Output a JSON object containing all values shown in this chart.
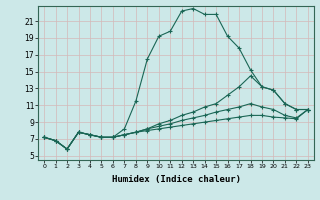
{
  "xlabel": "Humidex (Indice chaleur)",
  "background_color": "#cce8e8",
  "grid_color": "#b8d8d0",
  "line_color": "#1a6655",
  "xlim": [
    -0.5,
    23.5
  ],
  "ylim": [
    4.5,
    22.8
  ],
  "yticks": [
    5,
    7,
    9,
    11,
    13,
    15,
    17,
    19,
    21
  ],
  "xticks": [
    0,
    1,
    2,
    3,
    4,
    5,
    6,
    7,
    8,
    9,
    10,
    11,
    12,
    13,
    14,
    15,
    16,
    17,
    18,
    19,
    20,
    21,
    22,
    23
  ],
  "series": [
    {
      "x": [
        0,
        1,
        2,
        3,
        4,
        5,
        6,
        7,
        8,
        9,
        10,
        11,
        12,
        13,
        14,
        15,
        16,
        17,
        18,
        19,
        20,
        21,
        22,
        23
      ],
      "y": [
        7.2,
        6.8,
        5.8,
        7.8,
        7.5,
        7.2,
        7.2,
        8.2,
        11.5,
        16.5,
        19.2,
        19.8,
        22.2,
        22.5,
        21.8,
        21.8,
        19.2,
        17.8,
        15.2,
        13.2,
        12.8,
        11.2,
        10.5,
        10.5
      ]
    },
    {
      "x": [
        0,
        1,
        2,
        3,
        4,
        5,
        6,
        7,
        8,
        9,
        10,
        11,
        12,
        13,
        14,
        15,
        16,
        17,
        18,
        19,
        20,
        21,
        22,
        23
      ],
      "y": [
        7.2,
        6.8,
        5.8,
        7.8,
        7.5,
        7.2,
        7.2,
        7.5,
        7.8,
        8.2,
        8.8,
        9.2,
        9.8,
        10.2,
        10.8,
        11.2,
        12.2,
        13.2,
        14.5,
        13.2,
        12.8,
        11.2,
        10.5,
        10.5
      ]
    },
    {
      "x": [
        0,
        1,
        2,
        3,
        4,
        5,
        6,
        7,
        8,
        9,
        10,
        11,
        12,
        13,
        14,
        15,
        16,
        17,
        18,
        19,
        20,
        21,
        22,
        23
      ],
      "y": [
        7.2,
        6.8,
        5.8,
        7.8,
        7.5,
        7.2,
        7.2,
        7.5,
        7.8,
        8.2,
        8.5,
        8.8,
        9.2,
        9.5,
        9.8,
        10.2,
        10.5,
        10.8,
        11.2,
        10.8,
        10.5,
        9.8,
        9.5,
        10.5
      ]
    },
    {
      "x": [
        0,
        1,
        2,
        3,
        4,
        5,
        6,
        7,
        8,
        9,
        10,
        11,
        12,
        13,
        14,
        15,
        16,
        17,
        18,
        19,
        20,
        21,
        22,
        23
      ],
      "y": [
        7.2,
        6.8,
        5.8,
        7.8,
        7.5,
        7.2,
        7.2,
        7.5,
        7.8,
        8.0,
        8.2,
        8.4,
        8.6,
        8.8,
        9.0,
        9.2,
        9.4,
        9.6,
        9.8,
        9.8,
        9.6,
        9.5,
        9.4,
        10.5
      ]
    }
  ]
}
